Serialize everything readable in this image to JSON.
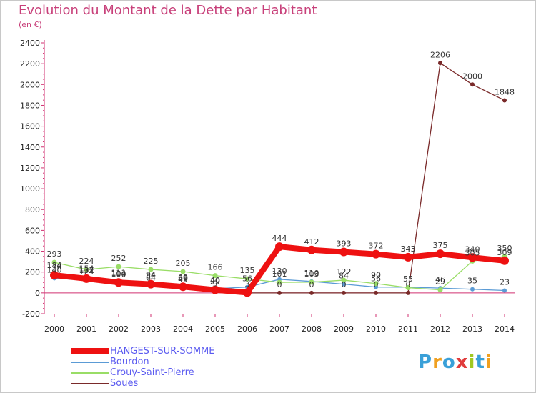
{
  "title": "Evolution du Montant de la Dette par Habitant",
  "subtitle": "(en €)",
  "logo_text": "Proxiti",
  "chart_data": {
    "type": "line",
    "title": "Evolution du Montant de la Dette par Habitant",
    "subtitle": "(en €)",
    "categories": [
      "2000",
      "2001",
      "2002",
      "2003",
      "2004",
      "2005",
      "2006",
      "2007",
      "2008",
      "2009",
      "2010",
      "2011",
      "2012",
      "2013",
      "2014"
    ],
    "ylim": [
      -200,
      2400
    ],
    "yticks": [
      -200,
      0,
      200,
      400,
      600,
      800,
      1000,
      1200,
      1400,
      1600,
      1800,
      2000,
      2200,
      2400
    ],
    "grid": false,
    "legend_position": "bottom",
    "series": [
      {
        "name": "HANGEST-SUR-SOMME",
        "color": "#ee1111",
        "values": [
          170,
          137,
          100,
          84,
          59,
          29,
          3,
          444,
          412,
          393,
          372,
          343,
          375,
          340,
          309
        ],
        "labels": [
          "170",
          "137",
          "100",
          "84",
          "59",
          "29",
          "3",
          "444",
          "412",
          "393",
          "372",
          "343",
          "375",
          "340",
          "309"
        ]
      },
      {
        "name": "Bourdon",
        "color": "#5b9bd5",
        "values": [
          140,
          124,
          104,
          64,
          69,
          40,
          56,
          130,
          110,
          84,
          56,
          55,
          46,
          35,
          23
        ],
        "labels": [
          "140",
          "124",
          "104",
          "64",
          "69",
          "40",
          "56",
          "130",
          "110",
          "84",
          "56",
          "55",
          "46",
          "35",
          "23"
        ]
      },
      {
        "name": "Crouy-Saint-Pierre",
        "color": "#99dd66",
        "values": [
          293,
          224,
          252,
          225,
          205,
          166,
          135,
          101,
          103,
          122,
          90,
          50,
          29,
          305,
          350
        ],
        "labels": [
          "293",
          "224",
          "252",
          "225",
          "205",
          "166",
          "135",
          "101",
          "103",
          "122",
          "90",
          "",
          "29",
          "305",
          "350"
        ]
      },
      {
        "name": "Soues",
        "color": "#7a2a2a",
        "values": [
          184,
          154,
          111,
          94,
          49,
          9,
          0,
          0,
          0,
          0,
          0,
          0,
          2206,
          2000,
          1848
        ],
        "labels": [
          "184",
          "154",
          "111",
          "94",
          "49",
          "9",
          "",
          "0",
          "0",
          "0",
          "0",
          "0",
          "2206",
          "2000",
          "1848"
        ]
      }
    ]
  }
}
